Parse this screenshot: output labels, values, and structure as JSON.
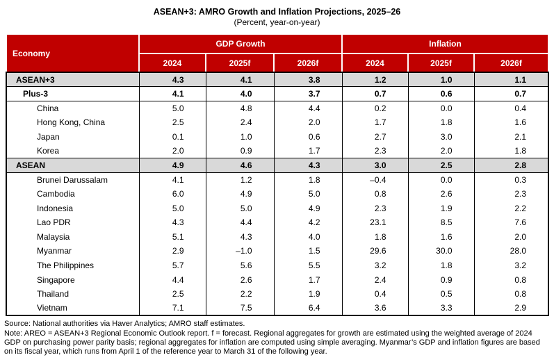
{
  "title": "ASEAN+3: AMRO Growth and Inflation Projections, 2025–26",
  "subtitle": "(Percent, year-on-year)",
  "colors": {
    "header_red": "#C00000",
    "aggregate_row_gray": "#D9D9D9",
    "header_text": "#FFFFFF",
    "body_text": "#000000"
  },
  "table": {
    "economy_header": "Economy",
    "groups": [
      {
        "label": "GDP Growth"
      },
      {
        "label": "Inflation"
      }
    ],
    "year_headers": [
      "2024",
      "2025f",
      "2026f",
      "2024",
      "2025f",
      "2026f"
    ],
    "rows": [
      {
        "economy": "ASEAN+3",
        "style": "aggregate",
        "indent": 0,
        "values": [
          "4.3",
          "4.1",
          "3.8",
          "1.2",
          "1.0",
          "1.1"
        ]
      },
      {
        "economy": "Plus-3",
        "style": "subtotal",
        "indent": 1,
        "values": [
          "4.1",
          "4.0",
          "3.7",
          "0.7",
          "0.6",
          "0.7"
        ]
      },
      {
        "economy": "China",
        "style": "plain",
        "indent": 2,
        "values": [
          "5.0",
          "4.8",
          "4.4",
          "0.2",
          "0.0",
          "0.4"
        ]
      },
      {
        "economy": "Hong Kong, China",
        "style": "plain",
        "indent": 2,
        "values": [
          "2.5",
          "2.4",
          "2.0",
          "1.7",
          "1.8",
          "1.6"
        ]
      },
      {
        "economy": "Japan",
        "style": "plain",
        "indent": 2,
        "values": [
          "0.1",
          "1.0",
          "0.6",
          "2.7",
          "3.0",
          "2.1"
        ]
      },
      {
        "economy": "Korea",
        "style": "plain",
        "indent": 2,
        "values": [
          "2.0",
          "0.9",
          "1.7",
          "2.3",
          "2.0",
          "1.8"
        ]
      },
      {
        "economy": "ASEAN",
        "style": "aggregate",
        "indent": 0,
        "values": [
          "4.9",
          "4.6",
          "4.3",
          "3.0",
          "2.5",
          "2.8"
        ]
      },
      {
        "economy": "Brunei Darussalam",
        "style": "plain",
        "indent": 2,
        "values": [
          "4.1",
          "1.2",
          "1.8",
          "–0.4",
          "0.0",
          "0.3"
        ]
      },
      {
        "economy": "Cambodia",
        "style": "plain",
        "indent": 2,
        "values": [
          "6.0",
          "4.9",
          "5.0",
          "0.8",
          "2.6",
          "2.3"
        ]
      },
      {
        "economy": "Indonesia",
        "style": "plain",
        "indent": 2,
        "values": [
          "5.0",
          "5.0",
          "4.9",
          "2.3",
          "1.9",
          "2.2"
        ]
      },
      {
        "economy": "Lao PDR",
        "style": "plain",
        "indent": 2,
        "values": [
          "4.3",
          "4.4",
          "4.2",
          "23.1",
          "8.5",
          "7.6"
        ]
      },
      {
        "economy": "Malaysia",
        "style": "plain",
        "indent": 2,
        "values": [
          "5.1",
          "4.3",
          "4.0",
          "1.8",
          "1.6",
          "2.0"
        ]
      },
      {
        "economy": "Myanmar",
        "style": "plain",
        "indent": 2,
        "values": [
          "2.9",
          "–1.0",
          "1.5",
          "29.6",
          "30.0",
          "28.0"
        ]
      },
      {
        "economy": "The Philippines",
        "style": "plain",
        "indent": 2,
        "values": [
          "5.7",
          "5.6",
          "5.5",
          "3.2",
          "1.8",
          "3.2"
        ]
      },
      {
        "economy": "Singapore",
        "style": "plain",
        "indent": 2,
        "values": [
          "4.4",
          "2.6",
          "1.7",
          "2.4",
          "0.9",
          "0.8"
        ]
      },
      {
        "economy": "Thailand",
        "style": "plain",
        "indent": 2,
        "values": [
          "2.5",
          "2.2",
          "1.9",
          "0.4",
          "0.5",
          "0.8"
        ]
      },
      {
        "economy": "Vietnam",
        "style": "plain",
        "indent": 2,
        "values": [
          "7.1",
          "7.5",
          "6.4",
          "3.6",
          "3.3",
          "2.9"
        ]
      }
    ]
  },
  "footer": {
    "source": "Source: National authorities via Haver Analytics; AMRO staff estimates.",
    "note": "Note: AREO = ASEAN+3 Regional Economic Outlook report. f = forecast. Regional aggregates for growth are estimated using the weighted average of 2024 GDP on purchasing power parity basis; regional aggregates for inflation are computed using simple averaging. Myanmar’s GDP and inflation figures are based on its fiscal year, which runs from April 1 of the reference year to March 31 of the following year."
  }
}
